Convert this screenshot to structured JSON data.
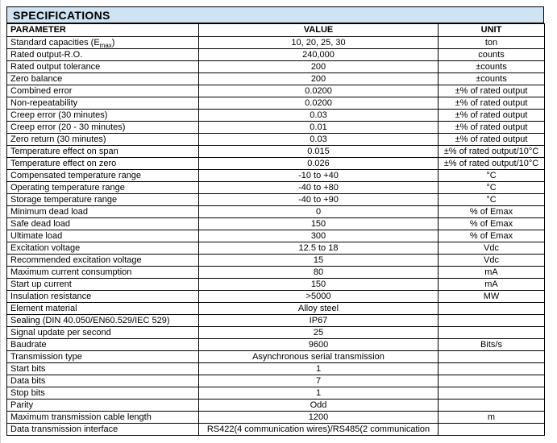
{
  "title": "SPECIFICATIONS",
  "colors": {
    "title_bg": "#cfe3f2",
    "table_border": "#000000",
    "page_bg": "#ffffff"
  },
  "columns": [
    "PARAMETER",
    "VALUE",
    "UNIT"
  ],
  "rows": [
    {
      "param": {
        "pre": "Standard capacities (E",
        "sub": "max",
        "post": ")"
      },
      "value": "10, 20, 25, 30",
      "unit": "ton"
    },
    {
      "param": "Rated output-R.O.",
      "value": "240,000",
      "unit": "counts"
    },
    {
      "param": "Rated output tolerance",
      "value": "200",
      "unit": "±counts"
    },
    {
      "param": "Zero balance",
      "value": "200",
      "unit": "±counts"
    },
    {
      "param": "Combined error",
      "value": "0.0200",
      "unit": "±% of rated output"
    },
    {
      "param": "Non-repeatability",
      "value": "0.0200",
      "unit": "±% of rated output"
    },
    {
      "param": "Creep error (30 minutes)",
      "value": "0.03",
      "unit": "±% of rated output"
    },
    {
      "param": "Creep error (20 - 30 minutes)",
      "value": "0.01",
      "unit": "±% of rated output"
    },
    {
      "param": "Zero return (30 minutes)",
      "value": "0.03",
      "unit": "±% of rated output"
    },
    {
      "param": "Temperature effect on span",
      "value": "0.015",
      "unit": "±% of rated output/10°C"
    },
    {
      "param": "Temperature effect on zero",
      "value": "0.026",
      "unit": "±% of rated output/10°C"
    },
    {
      "param": "Compensated temperature range",
      "value": "-10 to +40",
      "unit": "°C"
    },
    {
      "param": "Operating temperature range",
      "value": "-40 to +80",
      "unit": "°C"
    },
    {
      "param": "Storage temperature range",
      "value": "-40 to +90",
      "unit": "°C"
    },
    {
      "param": "Minimum dead load",
      "value": "0",
      "unit": "% of Emax"
    },
    {
      "param": "Safe dead load",
      "value": "150",
      "unit": "% of Emax"
    },
    {
      "param": "Ultimate load",
      "value": "300",
      "unit": "% of Emax"
    },
    {
      "param": "Excitation voltage",
      "value": "12.5 to 18",
      "unit": "Vdc"
    },
    {
      "param": "Recommended excitation voltage",
      "value": "15",
      "unit": "Vdc"
    },
    {
      "param": "Maximum current consumption",
      "value": "80",
      "unit": "mA"
    },
    {
      "param": "Start up current",
      "value": "150",
      "unit": "mA"
    },
    {
      "param": "Insulation resistance",
      "value": ">5000",
      "unit": "MW"
    },
    {
      "param": "Element material",
      "value": "Alloy steel",
      "unit": ""
    },
    {
      "param": "Sealing (DIN 40.050/EN60.529/IEC 529)",
      "value": "IP67",
      "unit": ""
    },
    {
      "param": "Signal update per second",
      "value": "25",
      "unit": ""
    },
    {
      "param": "Baudrate",
      "value": "9600",
      "unit": "Bits/s"
    },
    {
      "param": "Transmission type",
      "value": "Asynchronous serial transmission",
      "unit": ""
    },
    {
      "param": "Start bits",
      "value": "1",
      "unit": ""
    },
    {
      "param": "Data bits",
      "value": "7",
      "unit": ""
    },
    {
      "param": "Stop bits",
      "value": "1",
      "unit": ""
    },
    {
      "param": "Parity",
      "value": "Odd",
      "unit": ""
    },
    {
      "param": "Maximum transmission cable length",
      "value": "1200",
      "unit": "m"
    },
    {
      "param": "Data transmission interface",
      "value": "RS422(4 communication wires)/RS485(2 communication",
      "unit": ""
    }
  ]
}
